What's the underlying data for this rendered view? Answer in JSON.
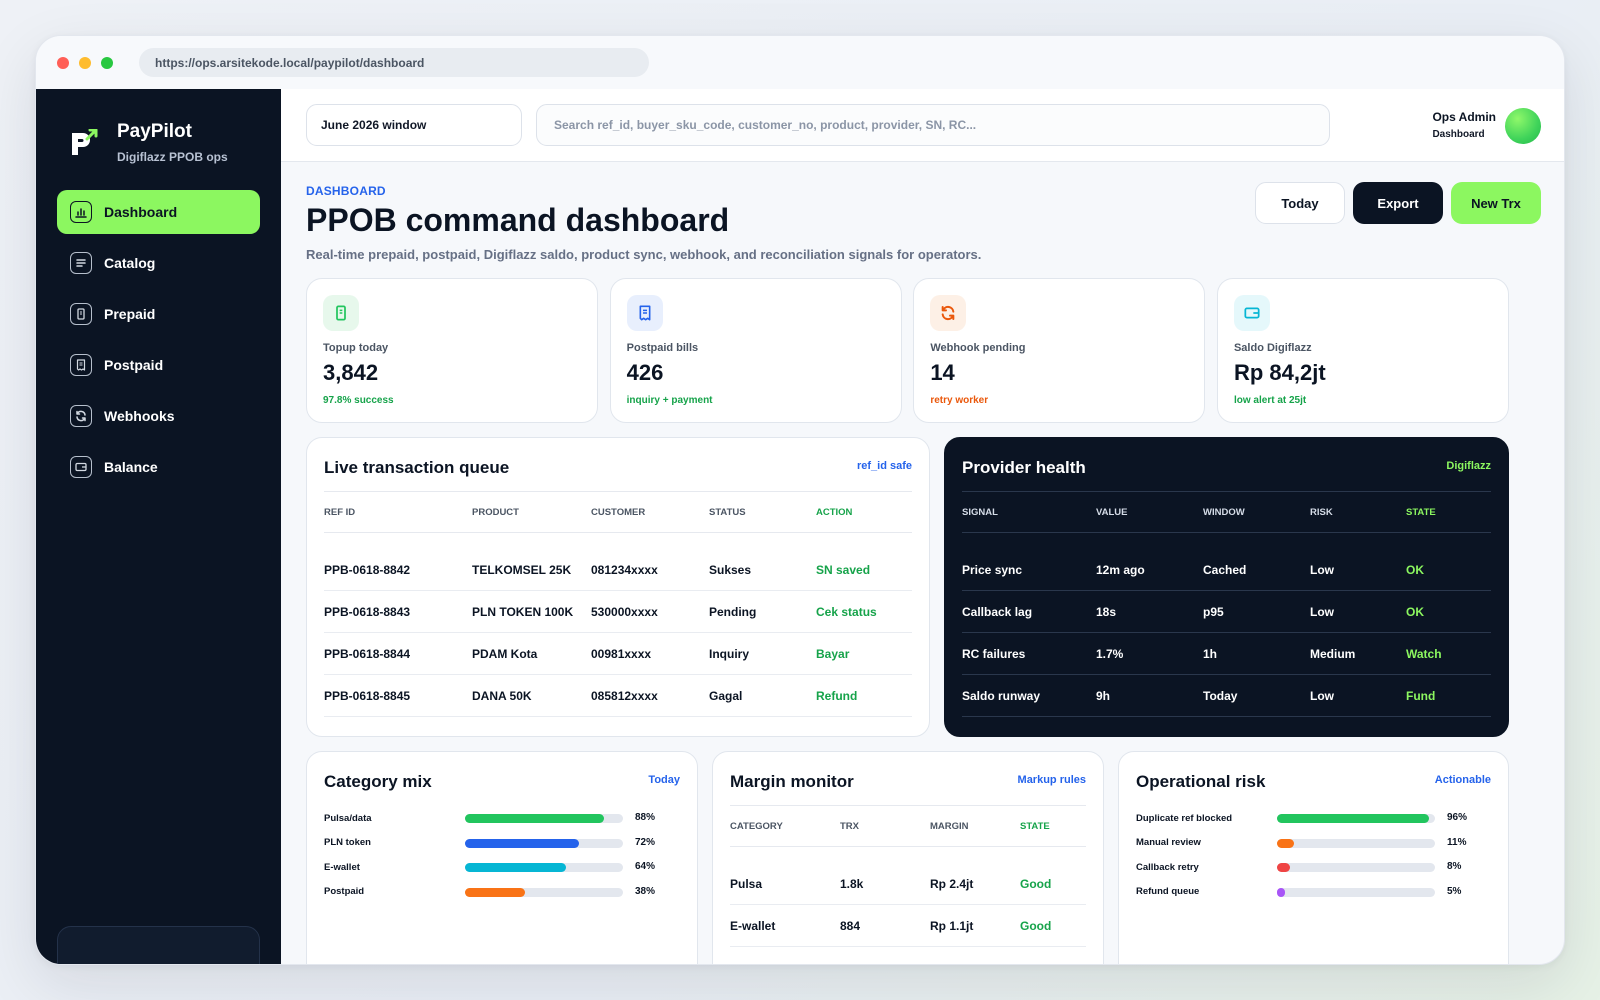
{
  "browser": {
    "url": "https://ops.arsitekode.local/paypilot/dashboard"
  },
  "brand": {
    "name": "PayPilot",
    "subtitle": "Digiflazz PPOB ops"
  },
  "nav": [
    {
      "label": "Dashboard",
      "icon": "chart-icon",
      "active": true
    },
    {
      "label": "Catalog",
      "icon": "list-icon",
      "active": false
    },
    {
      "label": "Prepaid",
      "icon": "phone-icon",
      "active": false
    },
    {
      "label": "Postpaid",
      "icon": "receipt-icon",
      "active": false
    },
    {
      "label": "Webhooks",
      "icon": "refresh-icon",
      "active": false
    },
    {
      "label": "Balance",
      "icon": "wallet-icon",
      "active": false
    }
  ],
  "topbar": {
    "period": "June 2026 window",
    "search_placeholder": "Search ref_id, buyer_sku_code, customer_no, product, provider, SN, RC...",
    "user_name": "Ops Admin",
    "user_role": "Dashboard"
  },
  "header": {
    "eyebrow": "DASHBOARD",
    "title": "PPOB command dashboard",
    "subtitle": "Real-time prepaid, postpaid, Digiflazz saldo, product sync, webhook, and reconciliation signals for operators.",
    "btn_today": "Today",
    "btn_export": "Export",
    "btn_new": "New Trx"
  },
  "stats": [
    {
      "label": "Topup today",
      "value": "3,842",
      "note": "97.8% success",
      "note_color": "#16a34a",
      "icon": "phone-icon",
      "icon_bg": "#e7f8ec",
      "icon_color": "#22c55e"
    },
    {
      "label": "Postpaid bills",
      "value": "426",
      "note": "inquiry + payment",
      "note_color": "#16a34a",
      "icon": "receipt-icon",
      "icon_bg": "#e8effd",
      "icon_color": "#2563eb"
    },
    {
      "label": "Webhook pending",
      "value": "14",
      "note": "retry worker",
      "note_color": "#ea580c",
      "icon": "refresh-icon",
      "icon_bg": "#fdf0e6",
      "icon_color": "#ea580c"
    },
    {
      "label": "Saldo Digiflazz",
      "value": "Rp 84,2jt",
      "note": "low alert at 25jt",
      "note_color": "#16a34a",
      "icon": "wallet-icon",
      "icon_bg": "#e5f8fb",
      "icon_color": "#06b6d4"
    }
  ],
  "queue": {
    "title": "Live transaction queue",
    "link": "ref_id safe",
    "columns": [
      "REF ID",
      "PRODUCT",
      "CUSTOMER",
      "STATUS",
      "ACTION"
    ],
    "rows": [
      [
        "PPB-0618-8842",
        "TELKOMSEL 25K",
        "081234xxxx",
        "Sukses",
        "SN saved"
      ],
      [
        "PPB-0618-8843",
        "PLN TOKEN 100K",
        "530000xxxx",
        "Pending",
        "Cek status"
      ],
      [
        "PPB-0618-8844",
        "PDAM Kota",
        "00981xxxx",
        "Inquiry",
        "Bayar"
      ],
      [
        "PPB-0618-8845",
        "DANA 50K",
        "085812xxxx",
        "Gagal",
        "Refund"
      ]
    ]
  },
  "provider": {
    "title": "Provider health",
    "link": "Digiflazz",
    "columns": [
      "SIGNAL",
      "VALUE",
      "WINDOW",
      "RISK",
      "STATE"
    ],
    "rows": [
      [
        "Price sync",
        "12m ago",
        "Cached",
        "Low",
        "OK"
      ],
      [
        "Callback lag",
        "18s",
        "p95",
        "Low",
        "OK"
      ],
      [
        "RC failures",
        "1.7%",
        "1h",
        "Medium",
        "Watch"
      ],
      [
        "Saldo runway",
        "9h",
        "Today",
        "Low",
        "Fund"
      ]
    ]
  },
  "category": {
    "title": "Category mix",
    "link": "Today",
    "items": [
      {
        "label": "Pulsa/data",
        "pct_label": "88%",
        "pct": 88,
        "color": "#22c55e"
      },
      {
        "label": "PLN token",
        "pct_label": "72%",
        "pct": 72,
        "color": "#2563eb"
      },
      {
        "label": "E-wallet",
        "pct_label": "64%",
        "pct": 64,
        "color": "#06b6d4"
      },
      {
        "label": "Postpaid",
        "pct_label": "38%",
        "pct": 38,
        "color": "#f97316"
      }
    ]
  },
  "margin": {
    "title": "Margin monitor",
    "link": "Markup rules",
    "columns": [
      "CATEGORY",
      "TRX",
      "MARGIN",
      "STATE"
    ],
    "rows": [
      [
        "Pulsa",
        "1.8k",
        "Rp 2.4jt",
        "Good"
      ],
      [
        "E-wallet",
        "884",
        "Rp 1.1jt",
        "Good"
      ]
    ]
  },
  "risk": {
    "title": "Operational risk",
    "link": "Actionable",
    "items": [
      {
        "label": "Duplicate ref blocked",
        "pct_label": "96%",
        "pct": 96,
        "color": "#22c55e"
      },
      {
        "label": "Manual review",
        "pct_label": "11%",
        "pct": 11,
        "color": "#f97316"
      },
      {
        "label": "Callback retry",
        "pct_label": "8%",
        "pct": 8,
        "color": "#ef4444"
      },
      {
        "label": "Refund queue",
        "pct_label": "5%",
        "pct": 5,
        "color": "#a855f7"
      }
    ]
  },
  "colors": {
    "accent": "#8cf760",
    "navy": "#0b1423",
    "link": "#2563eb",
    "ok_green": "#16a34a",
    "dark_ok": "#8cf760"
  }
}
